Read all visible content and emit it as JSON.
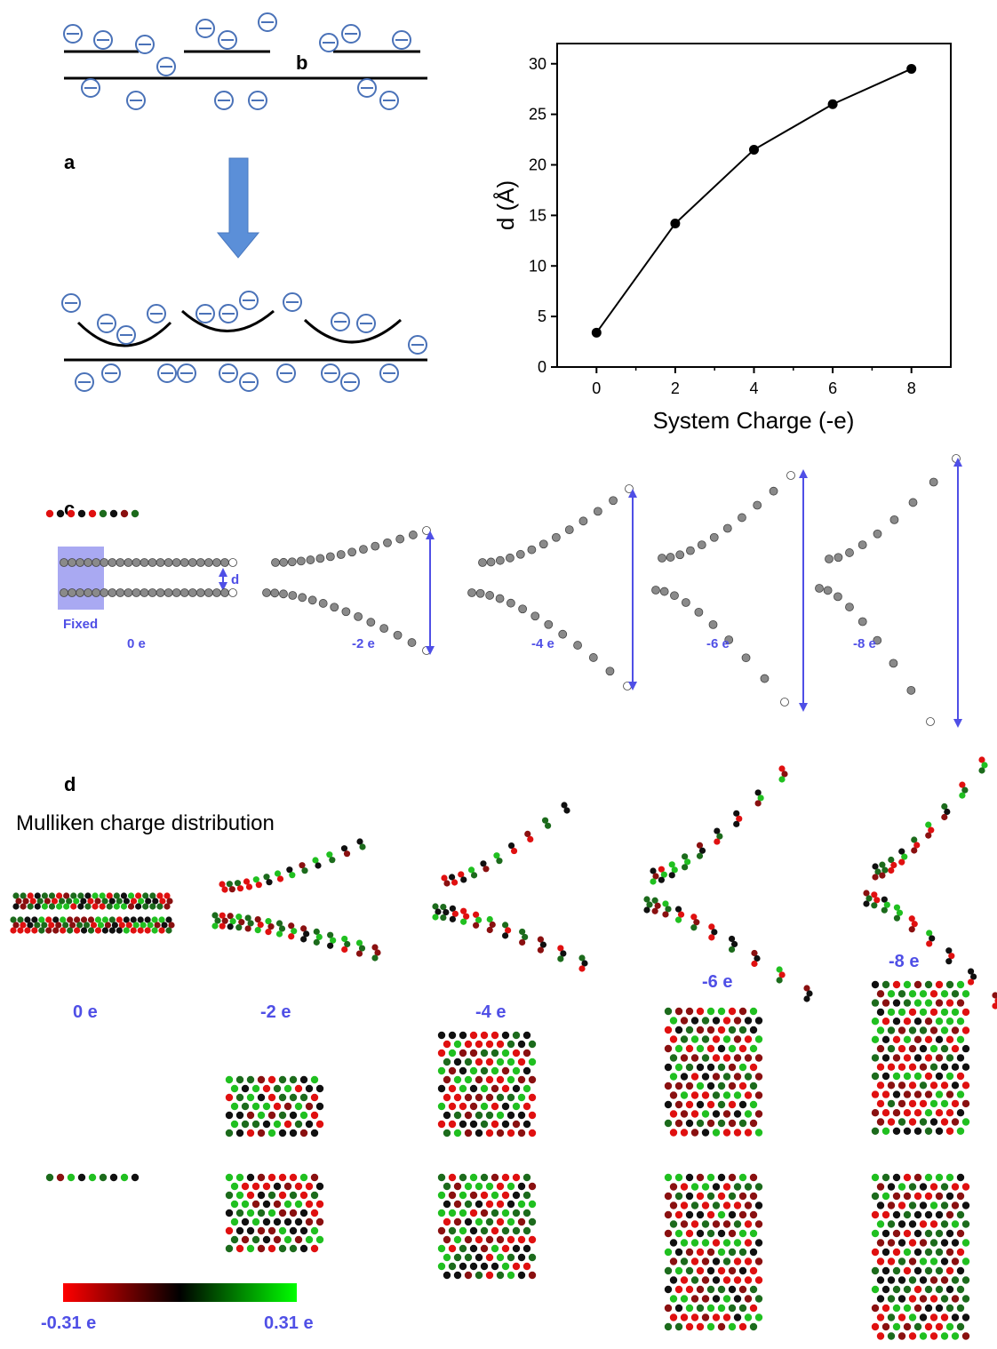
{
  "panel_labels": {
    "a": "a",
    "b": "b",
    "c": "c",
    "d": "d"
  },
  "chart_data": {
    "type": "line",
    "xlabel": "System Charge (-e)",
    "ylabel": "d (Å)",
    "x": [
      0,
      2,
      4,
      6,
      8
    ],
    "y": [
      3.4,
      14.2,
      21.5,
      26.0,
      29.5
    ],
    "xlim": [
      -1,
      9
    ],
    "ylim": [
      0,
      32
    ],
    "xticks": [
      0,
      2,
      4,
      6,
      8
    ],
    "yticks": [
      0,
      5,
      10,
      15,
      20,
      25,
      30
    ],
    "grid": false,
    "marker_color": "#000000"
  },
  "panel_c": {
    "fixed_label": "Fixed",
    "d_label": "d",
    "charge_labels": [
      "0 e",
      "-2 e",
      "-4 e",
      "-6 e",
      "-8 e"
    ],
    "arrow_color": "#4f4fe6",
    "fixed_box_color": "#9a9af0"
  },
  "panel_d": {
    "title": "Mulliken charge distribution",
    "charge_labels": [
      "0 e",
      "-2 e",
      "-4 e",
      "-6 e",
      "-8 e"
    ],
    "colorbar": {
      "min_label": "-0.31 e",
      "max_label": "0.31 e",
      "min_color": "#ff0000",
      "mid_color": "#000000",
      "max_color": "#00ff00"
    }
  }
}
